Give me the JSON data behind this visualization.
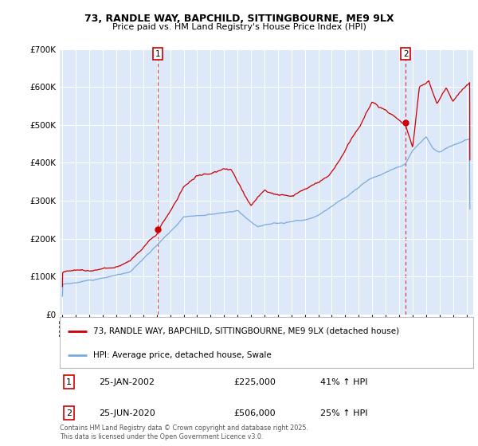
{
  "title": "73, RANDLE WAY, BAPCHILD, SITTINGBOURNE, ME9 9LX",
  "subtitle": "Price paid vs. HM Land Registry's House Price Index (HPI)",
  "line1_label": "73, RANDLE WAY, BAPCHILD, SITTINGBOURNE, ME9 9LX (detached house)",
  "line2_label": "HPI: Average price, detached house, Swale",
  "line1_color": "#cc0000",
  "line2_color": "#7aaadd",
  "marker1_t": 2002.07,
  "marker1_v": 225000,
  "marker2_t": 2020.48,
  "marker2_v": 506000,
  "ylim_min": 0,
  "ylim_max": 700000,
  "xlim_min": 1994.8,
  "xlim_max": 2025.5,
  "plot_bg_color": "#dde8f8",
  "grid_color": "#ffffff",
  "footer": "Contains HM Land Registry data © Crown copyright and database right 2025.\nThis data is licensed under the Open Government Licence v3.0."
}
